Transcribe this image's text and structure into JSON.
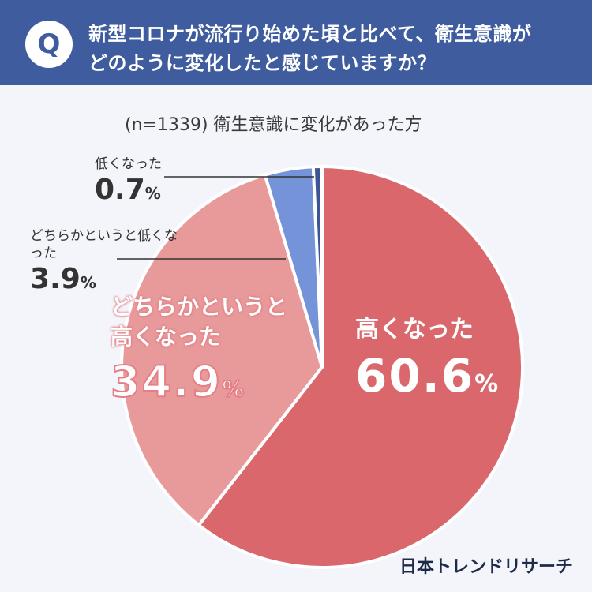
{
  "question": {
    "badge": "Q",
    "line1": "新型コロナが流行り始めた頃と比べて、衛生意識が",
    "line2": "どのように変化したと感じていますか？"
  },
  "subtitle": "(n=1339) 衛生意識に変化があった方",
  "brand": "日本トレンドリサーチ",
  "colors": {
    "header": "#3f5c9f",
    "slice_high": "#d9676b",
    "slice_somewhat_high": "#e89a9b",
    "slice_somewhat_low": "#7493d8",
    "slice_low": "#3c5595",
    "background": "#f3f5fb"
  },
  "chart_data": {
    "type": "pie",
    "title": "",
    "slices": [
      {
        "label": "低くなった",
        "value": 0.7,
        "value_text": "0.7",
        "unit": "%"
      },
      {
        "label": "どちらかというと低くなった",
        "value": 3.9,
        "value_text": "3.9",
        "unit": "%"
      },
      {
        "label": "どちらかというと高くなった",
        "value": 34.9,
        "value_text": "34.9",
        "unit": "%"
      },
      {
        "label": "高くなった",
        "value": 60.6,
        "value_text": "60.6",
        "unit": "%"
      }
    ],
    "start_angle_deg": 0,
    "direction": "clockwise",
    "order_from_top": [
      "高くなった",
      "どちらかというと高くなった",
      "どちらかというと低くなった",
      "低くなった"
    ]
  }
}
